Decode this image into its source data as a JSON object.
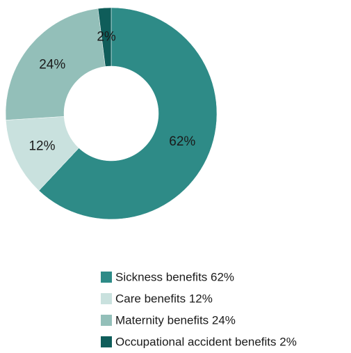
{
  "chart_data": {
    "type": "pie",
    "title": "",
    "categories": [
      "Sickness benefits",
      "Care benefits",
      "Maternity benefits",
      "Occupational accident benefits"
    ],
    "values": [
      62,
      12,
      24,
      2
    ],
    "slice_labels": [
      "62%",
      "12%",
      "24%",
      "2%"
    ],
    "legend": [
      "Sickness benefits 62%",
      "Care benefits 12%",
      "Maternity benefits 24%",
      "Occupational accident benefits 2%"
    ],
    "colors": [
      "#2e8b87",
      "#c9e1de",
      "#93bfb9",
      "#0f5d5a"
    ],
    "donut": true,
    "start_angle_deg": 0,
    "direction": "clockwise",
    "legend_position": "bottom"
  }
}
